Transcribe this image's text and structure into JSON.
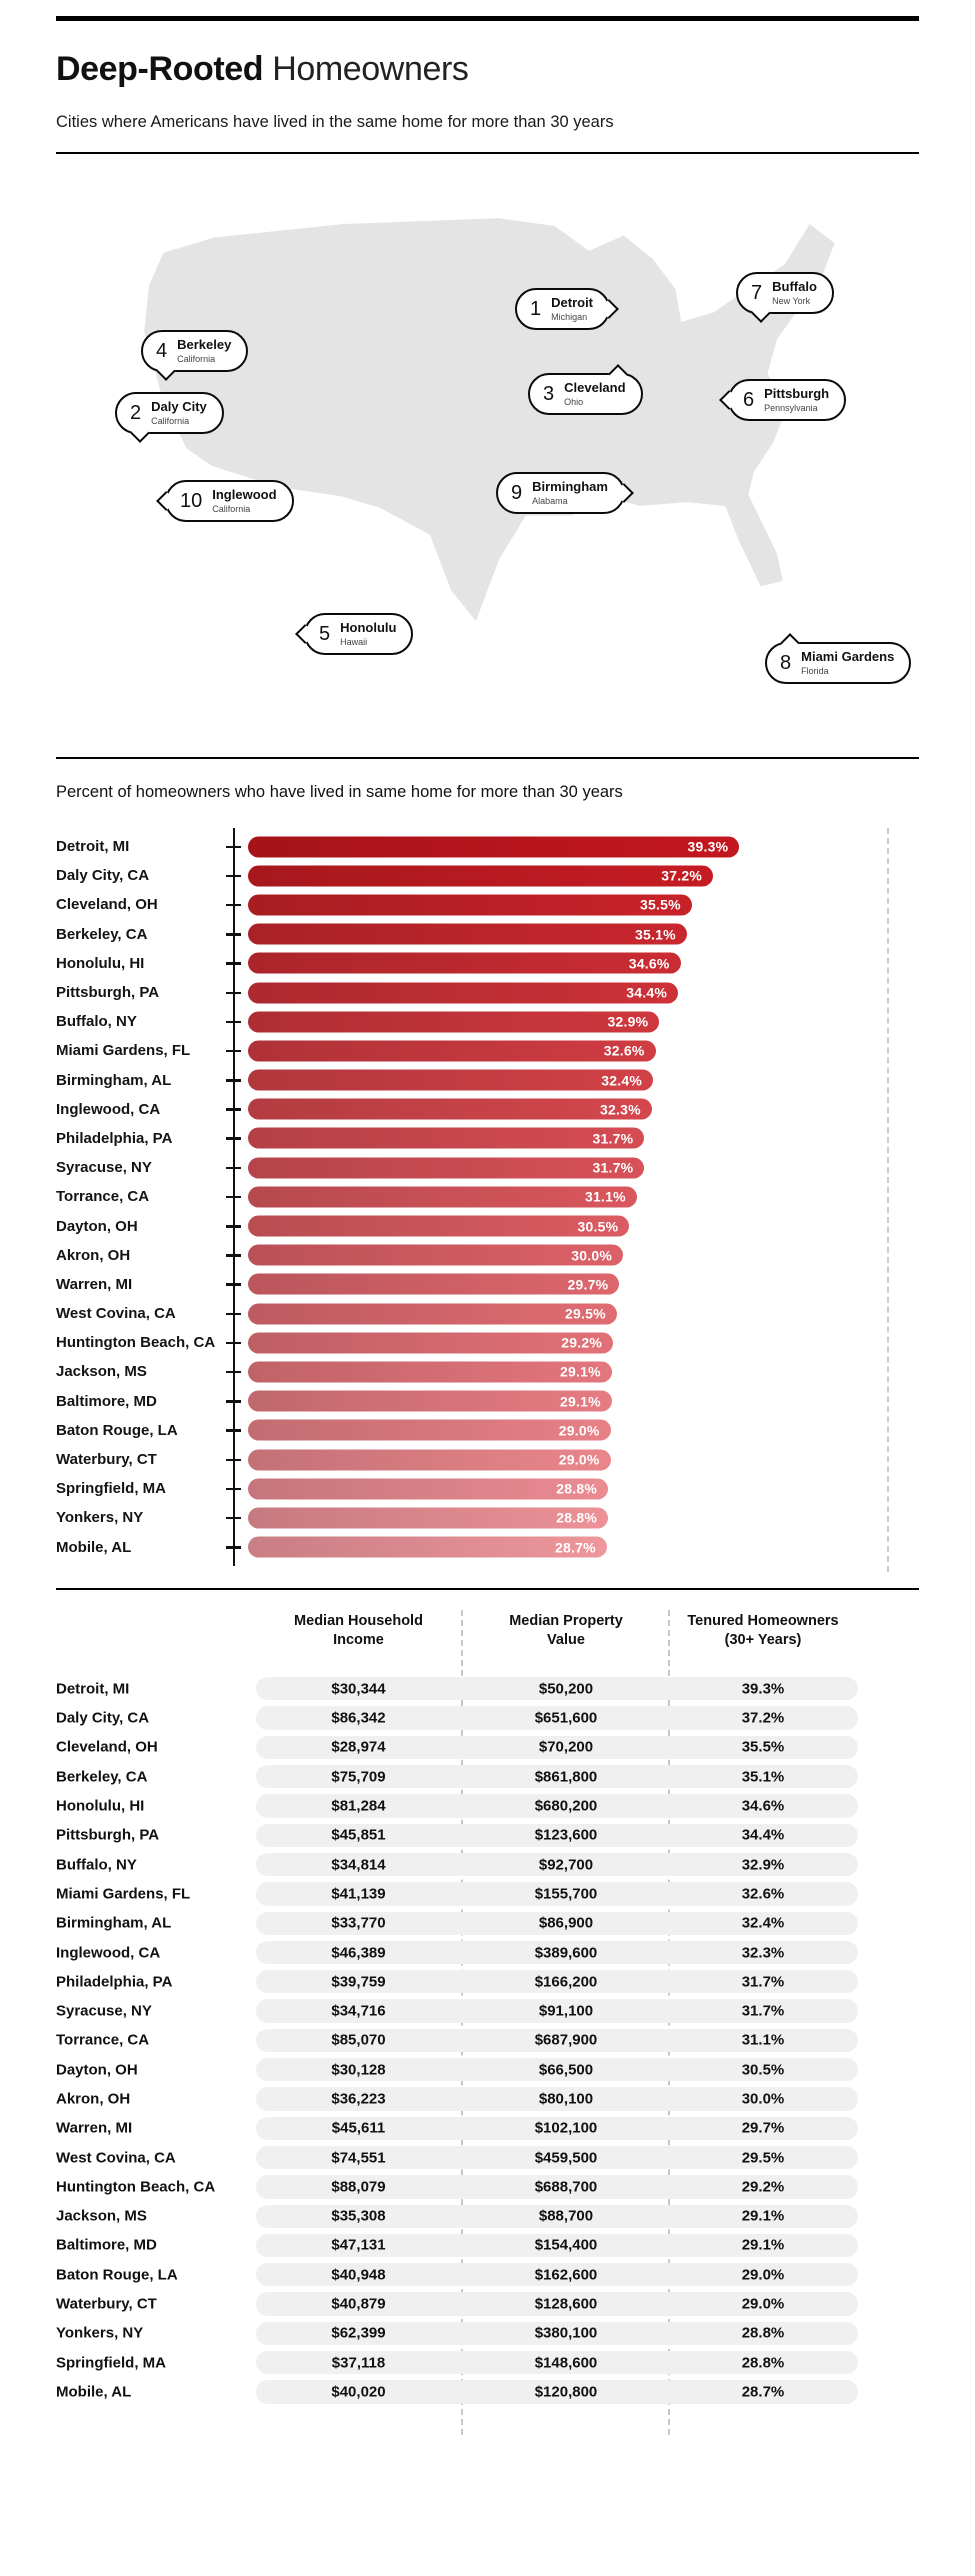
{
  "header": {
    "title_bold": "Deep-Rooted",
    "title_regular": "Homeowners",
    "subtitle": "Cities where Americans have lived in the same home for more than 30 years"
  },
  "map": {
    "callouts": [
      {
        "number": "1",
        "city": "Detroit",
        "state": "Michigan"
      },
      {
        "number": "2",
        "city": "Daly City",
        "state": "California"
      },
      {
        "number": "3",
        "city": "Cleveland",
        "state": "Ohio"
      },
      {
        "number": "4",
        "city": "Berkeley",
        "state": "California"
      },
      {
        "number": "5",
        "city": "Honolulu",
        "state": "Hawaii"
      },
      {
        "number": "6",
        "city": "Pittsburgh",
        "state": "Pennsylvania"
      },
      {
        "number": "7",
        "city": "Buffalo",
        "state": "New York"
      },
      {
        "number": "8",
        "city": "Miami Gardens",
        "state": "Florida"
      },
      {
        "number": "9",
        "city": "Birmingham",
        "state": "Alabama"
      },
      {
        "number": "10",
        "city": "Inglewood",
        "state": "California"
      }
    ]
  },
  "chart_data": {
    "type": "bar",
    "orientation": "horizontal",
    "title": "Percent of homeowners who have lived in same home for more than 30 years",
    "categories": [
      "Detroit, MI",
      "Daly City, CA",
      "Cleveland, OH",
      "Berkeley, CA",
      "Honolulu, HI",
      "Pittsburgh, PA",
      "Buffalo, NY",
      "Miami Gardens, FL",
      "Birmingham, AL",
      "Inglewood, CA",
      "Philadelphia, PA",
      "Syracuse, NY",
      "Torrance, CA",
      "Dayton, OH",
      "Akron, OH",
      "Warren, MI",
      "West Covina, CA",
      "Huntington Beach, CA",
      "Jackson, MS",
      "Baltimore, MD",
      "Baton Rouge, LA",
      "Waterbury, CT",
      "Springfield, MA",
      "Yonkers, NY",
      "Mobile, AL"
    ],
    "values": [
      39.3,
      37.2,
      35.5,
      35.1,
      34.6,
      34.4,
      32.9,
      32.6,
      32.4,
      32.3,
      31.7,
      31.7,
      31.1,
      30.5,
      30.0,
      29.7,
      29.5,
      29.2,
      29.1,
      29.1,
      29.0,
      29.0,
      28.8,
      28.8,
      28.7
    ],
    "value_suffix": "%",
    "xlim": [
      0,
      40
    ],
    "grid": false,
    "bar_color_start": "#c4171e",
    "bar_color_end": "#ee969c"
  },
  "table": {
    "headers": {
      "income": "Median Household\nIncome",
      "value": "Median Property\nValue",
      "tenure": "Tenured Homeowners\n(30+ Years)"
    },
    "rows": [
      {
        "city": "Detroit, MI",
        "income": "$30,344",
        "value": "$50,200",
        "tenure": "39.3%"
      },
      {
        "city": "Daly City, CA",
        "income": "$86,342",
        "value": "$651,600",
        "tenure": "37.2%"
      },
      {
        "city": "Cleveland, OH",
        "income": "$28,974",
        "value": "$70,200",
        "tenure": "35.5%"
      },
      {
        "city": "Berkeley, CA",
        "income": "$75,709",
        "value": "$861,800",
        "tenure": "35.1%"
      },
      {
        "city": "Honolulu, HI",
        "income": "$81,284",
        "value": "$680,200",
        "tenure": "34.6%"
      },
      {
        "city": "Pittsburgh, PA",
        "income": "$45,851",
        "value": "$123,600",
        "tenure": "34.4%"
      },
      {
        "city": "Buffalo, NY",
        "income": "$34,814",
        "value": "$92,700",
        "tenure": "32.9%"
      },
      {
        "city": "Miami Gardens, FL",
        "income": "$41,139",
        "value": "$155,700",
        "tenure": "32.6%"
      },
      {
        "city": "Birmingham, AL",
        "income": "$33,770",
        "value": "$86,900",
        "tenure": "32.4%"
      },
      {
        "city": "Inglewood, CA",
        "income": "$46,389",
        "value": "$389,600",
        "tenure": "32.3%"
      },
      {
        "city": "Philadelphia, PA",
        "income": "$39,759",
        "value": "$166,200",
        "tenure": "31.7%"
      },
      {
        "city": "Syracuse, NY",
        "income": "$34,716",
        "value": "$91,100",
        "tenure": "31.7%"
      },
      {
        "city": "Torrance, CA",
        "income": "$85,070",
        "value": "$687,900",
        "tenure": "31.1%"
      },
      {
        "city": "Dayton, OH",
        "income": "$30,128",
        "value": "$66,500",
        "tenure": "30.5%"
      },
      {
        "city": "Akron, OH",
        "income": "$36,223",
        "value": "$80,100",
        "tenure": "30.0%"
      },
      {
        "city": "Warren, MI",
        "income": "$45,611",
        "value": "$102,100",
        "tenure": "29.7%"
      },
      {
        "city": "West Covina, CA",
        "income": "$74,551",
        "value": "$459,500",
        "tenure": "29.5%"
      },
      {
        "city": "Huntington Beach, CA",
        "income": "$88,079",
        "value": "$688,700",
        "tenure": "29.2%"
      },
      {
        "city": "Jackson, MS",
        "income": "$35,308",
        "value": "$88,700",
        "tenure": "29.1%"
      },
      {
        "city": "Baltimore, MD",
        "income": "$47,131",
        "value": "$154,400",
        "tenure": "29.1%"
      },
      {
        "city": "Baton Rouge, LA",
        "income": "$40,948",
        "value": "$162,600",
        "tenure": "29.0%"
      },
      {
        "city": "Waterbury, CT",
        "income": "$40,879",
        "value": "$128,600",
        "tenure": "29.0%"
      },
      {
        "city": "Yonkers, NY",
        "income": "$62,399",
        "value": "$380,100",
        "tenure": "28.8%"
      },
      {
        "city": "Springfield, MA",
        "income": "$37,118",
        "value": "$148,600",
        "tenure": "28.8%"
      },
      {
        "city": "Mobile, AL",
        "income": "$40,020",
        "value": "$120,800",
        "tenure": "28.7%"
      }
    ]
  }
}
